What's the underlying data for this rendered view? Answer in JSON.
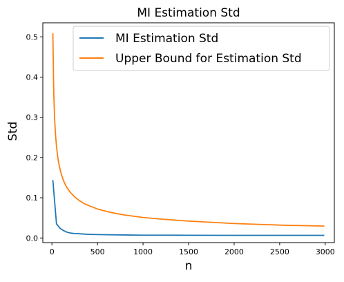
{
  "chart_data": {
    "type": "line",
    "title": "MI Estimation Std",
    "xlabel": "n",
    "ylabel": "Std",
    "xlim": [
      -100,
      3100
    ],
    "ylim": [
      -0.0115,
      0.535
    ],
    "xticks": [
      0,
      500,
      1000,
      1500,
      2000,
      2500,
      3000
    ],
    "yticks": [
      0.0,
      0.1,
      0.2,
      0.3,
      0.4,
      0.5
    ],
    "xtick_labels": [
      "0",
      "500",
      "1000",
      "1500",
      "2000",
      "2500",
      "3000"
    ],
    "ytick_labels": [
      "0.0",
      "0.1",
      "0.2",
      "0.3",
      "0.4",
      "0.5"
    ],
    "grid": false,
    "legend_position": "top-right",
    "series": [
      {
        "name": "MI Estimation Std",
        "color": "#1f77b4",
        "x": [
          10,
          50,
          90,
          130,
          170,
          210,
          250,
          300,
          400,
          500,
          600,
          800,
          1000,
          1200,
          1500,
          2000,
          2500,
          2990
        ],
        "y": [
          0.144,
          0.035,
          0.024,
          0.018,
          0.014,
          0.012,
          0.011,
          0.0105,
          0.009,
          0.0085,
          0.008,
          0.0075,
          0.007,
          0.007,
          0.0068,
          0.0066,
          0.0066,
          0.0065
        ]
      },
      {
        "name": "Upper Bound for Estimation Std",
        "color": "#ff7f0e",
        "x": [
          10,
          20,
          30,
          40,
          50,
          60,
          70,
          80,
          90,
          100,
          120,
          140,
          160,
          180,
          200,
          250,
          300,
          350,
          400,
          500,
          600,
          700,
          800,
          1000,
          1200,
          1500,
          2000,
          2500,
          2990
        ],
        "y": [
          0.509,
          0.36,
          0.294,
          0.255,
          0.228,
          0.208,
          0.192,
          0.18,
          0.17,
          0.161,
          0.147,
          0.136,
          0.127,
          0.12,
          0.114,
          0.102,
          0.093,
          0.086,
          0.081,
          0.072,
          0.066,
          0.061,
          0.057,
          0.051,
          0.047,
          0.042,
          0.036,
          0.032,
          0.0295
        ]
      }
    ]
  }
}
